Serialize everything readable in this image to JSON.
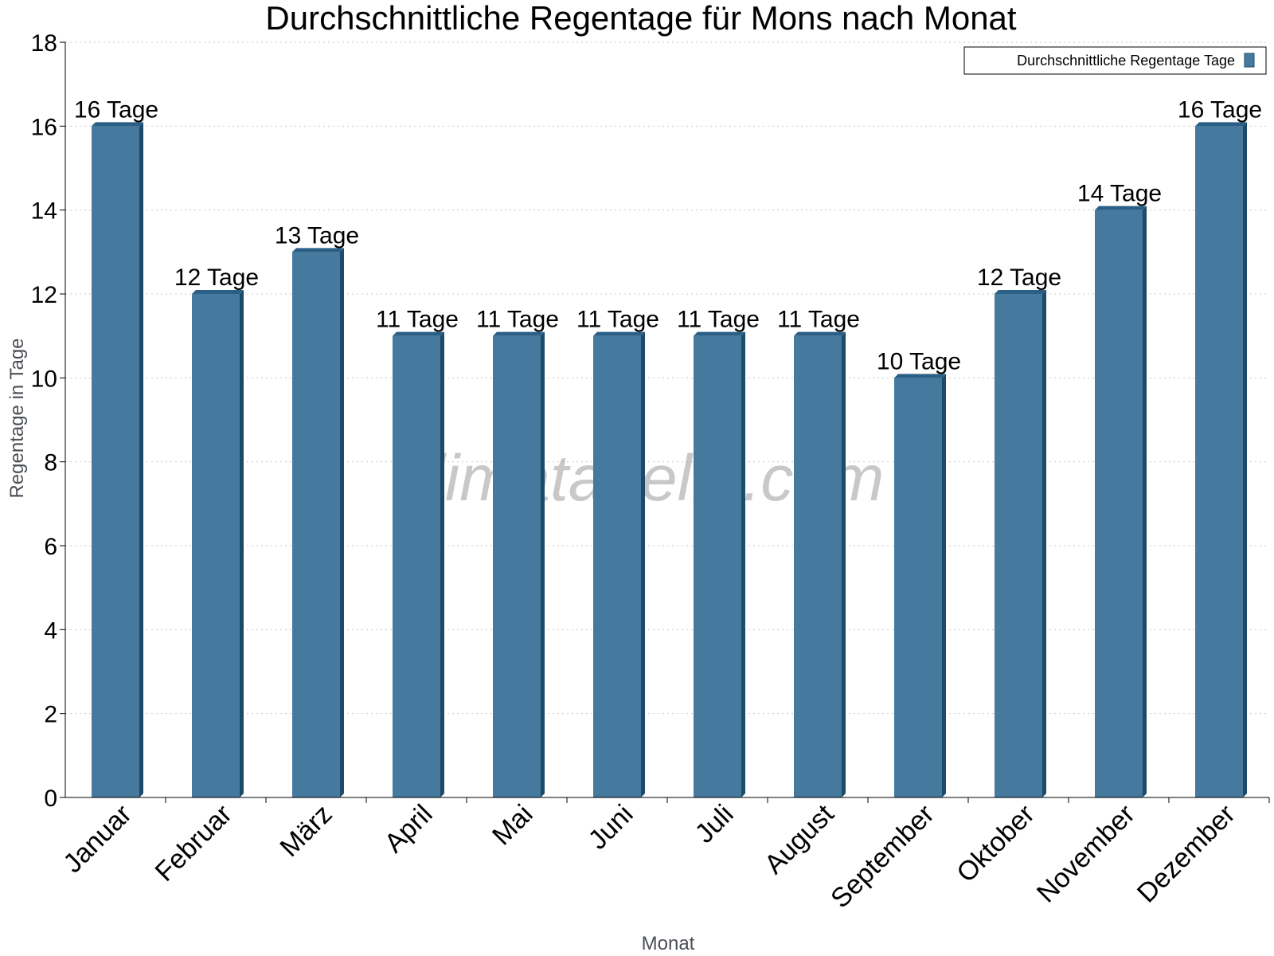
{
  "chart_data": {
    "type": "bar",
    "title": "Durchschnittliche Regentage für Mons nach Monat",
    "xlabel": "Monat",
    "ylabel": "Regentage in Tage",
    "categories": [
      "Januar",
      "Februar",
      "März",
      "April",
      "Mai",
      "Juni",
      "Juli",
      "August",
      "September",
      "Oktober",
      "November",
      "Dezember"
    ],
    "series": [
      {
        "name": "Durchschnittliche Regentage Tage",
        "values": [
          16,
          12,
          13,
          11,
          11,
          11,
          11,
          11,
          10,
          12,
          14,
          16
        ],
        "data_labels": [
          "16 Tage",
          "12 Tage",
          "13 Tage",
          "11 Tage",
          "11 Tage",
          "11 Tage",
          "11 Tage",
          "11 Tage",
          "10 Tage",
          "12 Tage",
          "14 Tage",
          "16 Tage"
        ],
        "color": "#45799d"
      }
    ],
    "ylim": [
      0,
      18
    ],
    "yticks": [
      0,
      2,
      4,
      6,
      8,
      10,
      12,
      14,
      16,
      18
    ],
    "grid": true,
    "legend_position": "top-right"
  },
  "watermark": "klimatabelle.com",
  "colors": {
    "bar_front": "#45799d",
    "bar_side": "#1e4a6a",
    "bar_top": "#2a5f86"
  }
}
